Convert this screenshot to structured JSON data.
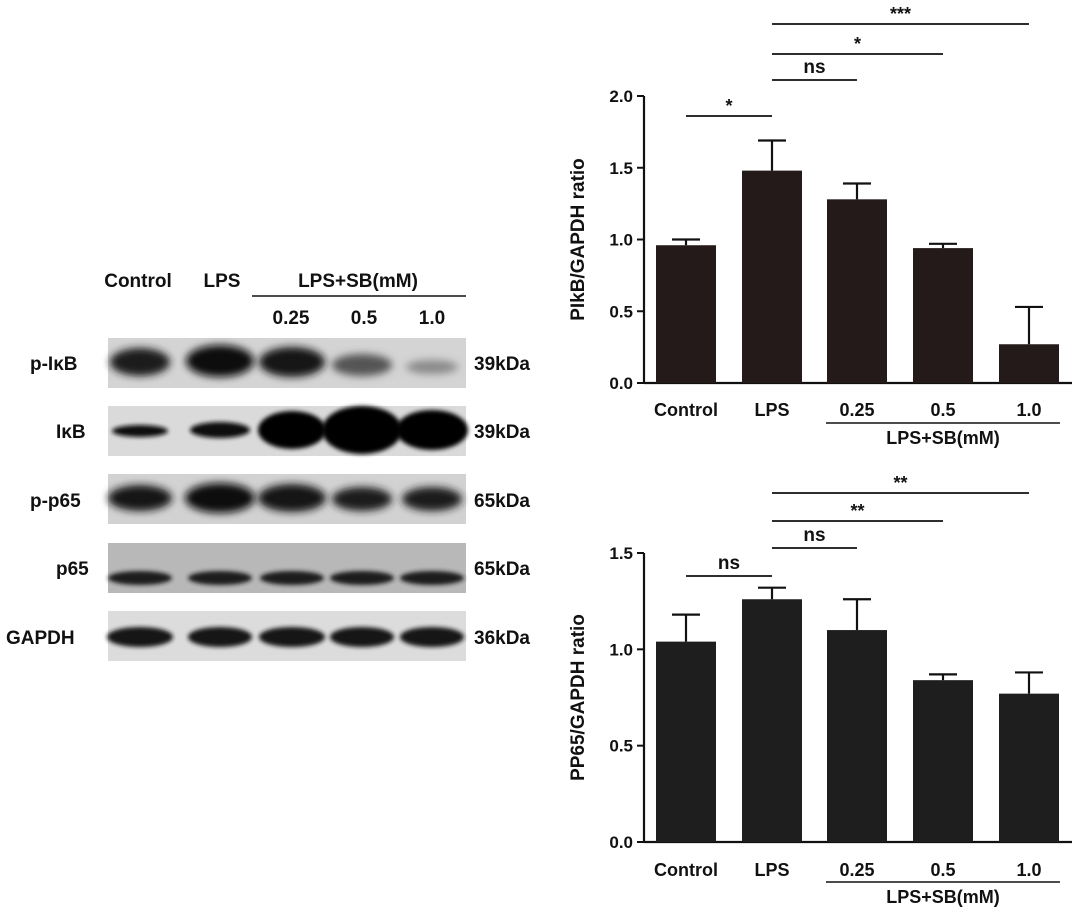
{
  "blot": {
    "header": {
      "control": "Control",
      "lps": "LPS",
      "group": "LPS+SB(mM)",
      "d1": "0.25",
      "d2": "0.5",
      "d3": "1.0"
    },
    "rows": [
      {
        "label": "p-IκB",
        "size": "39kDa"
      },
      {
        "label": "IκB",
        "size": "39kDa"
      },
      {
        "label": "p-p65",
        "size": "65kDa"
      },
      {
        "label": "p65",
        "size": "65kDa"
      },
      {
        "label": "GAPDH",
        "size": "36kDa"
      }
    ]
  },
  "chart_data": [
    {
      "type": "bar",
      "categories": [
        "Control",
        "LPS",
        "0.25",
        "0.5",
        "1.0"
      ],
      "values": [
        0.96,
        1.48,
        1.28,
        0.94,
        0.27
      ],
      "errors": [
        0.04,
        0.21,
        0.11,
        0.03,
        0.26
      ],
      "ylabel": "PIkB/GAPDH ratio",
      "xlabel": "LPS+SB(mM)",
      "ylim": [
        0,
        2.0
      ],
      "yticks": [
        "0.0",
        "0.5",
        "1.0",
        "1.5",
        "2.0"
      ],
      "yticks_values": [
        0,
        0.5,
        1.0,
        1.5,
        2.0
      ],
      "bar_color": "#231a19",
      "significance": [
        {
          "from": 0,
          "to": 1,
          "label": "*"
        },
        {
          "from": 1,
          "to": 2,
          "label": "ns"
        },
        {
          "from": 1,
          "to": 3,
          "label": "*"
        },
        {
          "from": 1,
          "to": 4,
          "label": "***"
        }
      ]
    },
    {
      "type": "bar",
      "categories": [
        "Control",
        "LPS",
        "0.25",
        "0.5",
        "1.0"
      ],
      "values": [
        1.04,
        1.26,
        1.1,
        0.84,
        0.77
      ],
      "errors": [
        0.14,
        0.06,
        0.16,
        0.03,
        0.11
      ],
      "ylabel": "PP65/GAPDH ratio",
      "xlabel": "LPS+SB(mM)",
      "ylim": [
        0,
        1.5
      ],
      "yticks": [
        "0.0",
        "0.5",
        "1.0",
        "1.5"
      ],
      "yticks_values": [
        0,
        0.5,
        1.0,
        1.5
      ],
      "bar_color": "#1e1e1e",
      "significance": [
        {
          "from": 0,
          "to": 1,
          "label": "ns"
        },
        {
          "from": 1,
          "to": 2,
          "label": "ns"
        },
        {
          "from": 1,
          "to": 3,
          "label": "**"
        },
        {
          "from": 1,
          "to": 4,
          "label": "**"
        }
      ]
    }
  ]
}
